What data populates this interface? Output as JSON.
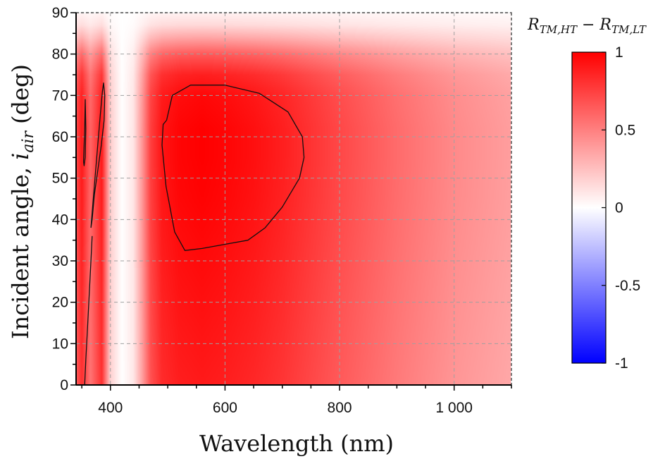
{
  "chart_data": {
    "type": "heatmap",
    "title": "",
    "xlabel": "Wavelength (nm)",
    "ylabel": {
      "main": "Incident angle, ",
      "var": "i",
      "sub": "air",
      "unit": " (deg)"
    },
    "xlim": [
      340,
      1100
    ],
    "ylim": [
      0,
      90
    ],
    "xticks": [
      400,
      600,
      800,
      1000
    ],
    "xtick_labels": [
      "400",
      "600",
      "800",
      "1 000"
    ],
    "yticks": [
      0,
      10,
      20,
      30,
      40,
      50,
      60,
      70,
      80,
      90
    ],
    "ytick_labels": [
      "0",
      "10",
      "20",
      "30",
      "40",
      "50",
      "60",
      "70",
      "80",
      "90"
    ],
    "grid": true,
    "colorbar": {
      "title": {
        "a": "R",
        "a_sub": "TM,HT",
        "minus": " − ",
        "b": "R",
        "b_sub": "TM,LT"
      },
      "range": [
        -1,
        1
      ],
      "ticks": [
        1,
        0.5,
        0,
        -0.5,
        -1
      ],
      "tick_labels": [
        "1",
        "0.5",
        "0",
        "-0.5",
        "-1"
      ],
      "colors": {
        "low": "#0000ff",
        "mid": "#ffffff",
        "high": "#ff0000"
      }
    },
    "field_profile": {
      "wavelength_nm": [
        340,
        350,
        365,
        385,
        400,
        420,
        440,
        455,
        470,
        490,
        520,
        560,
        600,
        650,
        700,
        750,
        800,
        850,
        900,
        950,
        1000,
        1050,
        1100
      ],
      "value_mid_angle": [
        0.7,
        0.9,
        0.6,
        0.9,
        0.2,
        0.0,
        0.1,
        0.4,
        0.75,
        0.92,
        0.98,
        1.0,
        0.98,
        0.94,
        0.88,
        0.8,
        0.72,
        0.65,
        0.58,
        0.52,
        0.46,
        0.42,
        0.38
      ],
      "angle_deg": [
        0,
        15,
        30,
        45,
        55,
        62,
        70,
        75,
        80,
        84,
        87,
        90
      ],
      "angle_factor": [
        0.9,
        0.93,
        0.96,
        0.99,
        1.0,
        1.0,
        0.97,
        0.88,
        0.65,
        0.35,
        0.15,
        0.05
      ]
    },
    "contour_level": 0.95,
    "contours": [
      {
        "name": "main-loop",
        "points": [
          [
            498,
            64
          ],
          [
            508,
            70
          ],
          [
            540,
            72.5
          ],
          [
            600,
            72.5
          ],
          [
            660,
            70.5
          ],
          [
            710,
            66
          ],
          [
            735,
            60
          ],
          [
            738,
            55
          ],
          [
            730,
            50
          ],
          [
            700,
            43
          ],
          [
            670,
            38
          ],
          [
            640,
            35
          ],
          [
            600,
            34
          ],
          [
            560,
            33
          ],
          [
            530,
            32.5
          ],
          [
            512,
            37
          ],
          [
            497,
            48
          ],
          [
            490,
            58
          ],
          [
            492,
            63
          ],
          [
            498,
            64
          ]
        ]
      },
      {
        "name": "narrow-loop",
        "points": [
          [
            366,
            38
          ],
          [
            370,
            45
          ],
          [
            376,
            55
          ],
          [
            382,
            65
          ],
          [
            386,
            71
          ],
          [
            388,
            73
          ],
          [
            390,
            70
          ],
          [
            389,
            64
          ],
          [
            384,
            58
          ],
          [
            378,
            52
          ],
          [
            372,
            46
          ],
          [
            368,
            40
          ],
          [
            366,
            38
          ]
        ]
      },
      {
        "name": "edge-sliver",
        "points": [
          [
            353,
            54
          ],
          [
            355,
            62
          ],
          [
            356,
            69
          ],
          [
            357,
            62
          ],
          [
            356,
            55
          ],
          [
            354,
            53
          ],
          [
            353,
            54
          ]
        ]
      },
      {
        "name": "low-tail",
        "points": [
          [
            355,
            0
          ],
          [
            357,
            6
          ],
          [
            360,
            14
          ],
          [
            363,
            22
          ],
          [
            366,
            30
          ],
          [
            368,
            36
          ]
        ]
      }
    ]
  }
}
